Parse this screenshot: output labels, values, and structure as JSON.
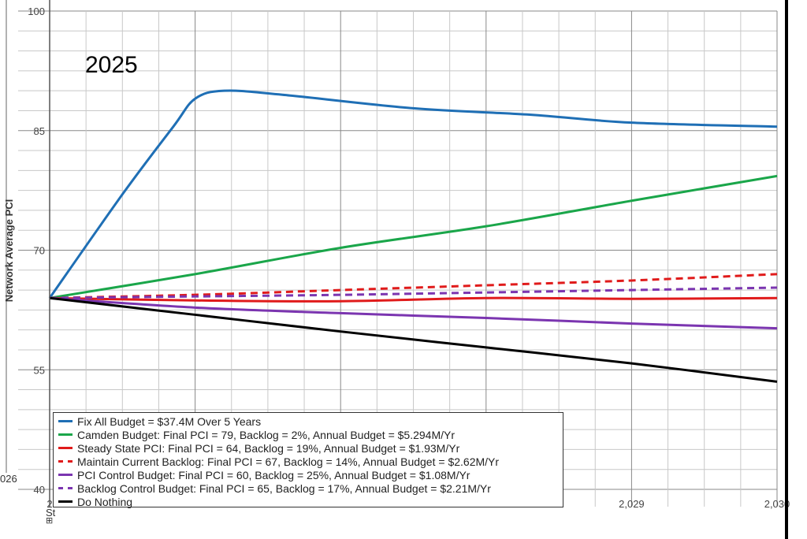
{
  "chart_data": {
    "type": "line",
    "title": "2025",
    "ylabel": "Network Average PCI",
    "ylim": [
      40,
      100
    ],
    "y_ticks": [
      "100",
      "85",
      "70",
      "55",
      "40"
    ],
    "xlim": [
      2025,
      2030
    ],
    "x_ticks": [
      {
        "value": 2029,
        "label": "2,029"
      },
      {
        "value": 2030,
        "label": "2,030"
      }
    ],
    "grid": true,
    "legend_position": "bottom-left",
    "cut_text": {
      "left_tick": "026",
      "bottom_left": "St",
      "bottom_left_tick": "2"
    },
    "series": [
      {
        "name": "Fix All Budget = $37.4M Over 5 Years",
        "color": "#1f6fb5",
        "style": "solid",
        "x": [
          2025,
          2025.5,
          2025.85,
          2026,
          2026.2,
          2026.6,
          2027.5,
          2028.3,
          2029,
          2030
        ],
        "y": [
          64,
          77,
          85.5,
          89,
          90,
          89.5,
          87.8,
          87,
          86,
          85.5
        ]
      },
      {
        "name": "Camden Budget: Final PCI = 79, Backlog = 2%, Annual Budget = $5.294M/Yr",
        "color": "#1aa64a",
        "style": "solid",
        "x": [
          2025,
          2026,
          2027,
          2028,
          2029,
          2030
        ],
        "y": [
          64,
          67,
          70.3,
          73,
          76.2,
          79.3
        ]
      },
      {
        "name": "Steady State PCI: Final PCI = 64, Backlog = 19%, Annual Budget = $1.93M/Yr",
        "color": "#e01b1b",
        "style": "solid",
        "x": [
          2025,
          2026,
          2027,
          2028,
          2029,
          2030
        ],
        "y": [
          64,
          63.7,
          63.6,
          64,
          63.9,
          64
        ]
      },
      {
        "name": "Maintain Current Backlog: Final PCI = 67, Backlog = 14%, Annual Budget = $2.62M/Yr",
        "color": "#e01b1b",
        "style": "dashed",
        "x": [
          2025,
          2026,
          2027,
          2028,
          2029,
          2030
        ],
        "y": [
          64,
          64.4,
          65,
          65.6,
          66.2,
          67
        ]
      },
      {
        "name": "PCI Control Budget: Final PCI = 60, Backlog = 25%, Annual Budget = $1.08M/Yr",
        "color": "#7b35b0",
        "style": "solid",
        "x": [
          2025,
          2026,
          2027,
          2028,
          2029,
          2030
        ],
        "y": [
          64,
          62.8,
          62.1,
          61.5,
          60.8,
          60.2
        ]
      },
      {
        "name": "Backlog Control Budget: Final PCI = 65, Backlog = 17%, Annual Budget = $2.21M/Yr",
        "color": "#7b35b0",
        "style": "dashed",
        "x": [
          2025,
          2026,
          2027,
          2028,
          2029,
          2030
        ],
        "y": [
          64,
          64.2,
          64.4,
          64.7,
          65,
          65.3
        ]
      },
      {
        "name": "Do Nothing",
        "color": "#000000",
        "style": "solid",
        "x": [
          2025,
          2026,
          2027,
          2028,
          2029,
          2030
        ],
        "y": [
          64,
          61.9,
          59.8,
          57.8,
          55.8,
          53.5
        ]
      }
    ]
  }
}
